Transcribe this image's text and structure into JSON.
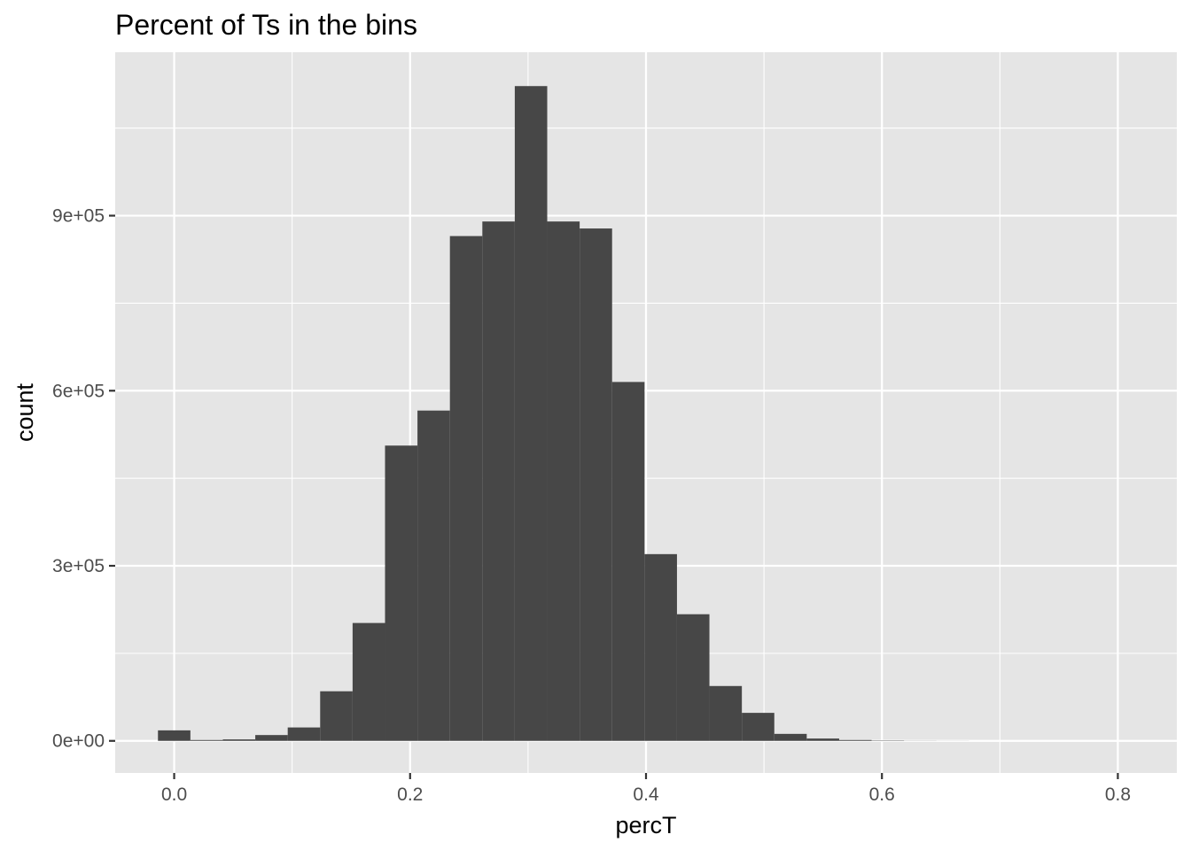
{
  "chart_data": {
    "type": "bar",
    "subtype": "histogram",
    "title": "Percent of Ts in the bins",
    "xlabel": "percT",
    "ylabel": "count",
    "xlim": [
      -0.05,
      0.85
    ],
    "ylim": [
      -55000,
      1180000
    ],
    "x_ticks": [
      0.0,
      0.2,
      0.4,
      0.6,
      0.8
    ],
    "x_tick_labels": [
      "0.0",
      "0.2",
      "0.4",
      "0.6",
      "0.8"
    ],
    "y_ticks": [
      0,
      300000,
      600000,
      900000
    ],
    "y_tick_labels": [
      "0e+00",
      "3e+05",
      "6e+05",
      "9e+05"
    ],
    "grid": true,
    "bin_width": 0.0275,
    "bins": [
      {
        "x": 0.0,
        "count": 18000
      },
      {
        "x": 0.0275,
        "count": 1500
      },
      {
        "x": 0.055,
        "count": 2500
      },
      {
        "x": 0.0825,
        "count": 10000
      },
      {
        "x": 0.11,
        "count": 23000
      },
      {
        "x": 0.1375,
        "count": 85000
      },
      {
        "x": 0.165,
        "count": 202000
      },
      {
        "x": 0.1925,
        "count": 506000
      },
      {
        "x": 0.22,
        "count": 566000
      },
      {
        "x": 0.2475,
        "count": 865000
      },
      {
        "x": 0.275,
        "count": 890000
      },
      {
        "x": 0.3025,
        "count": 1122000
      },
      {
        "x": 0.33,
        "count": 890000
      },
      {
        "x": 0.3575,
        "count": 878000
      },
      {
        "x": 0.385,
        "count": 615000
      },
      {
        "x": 0.4125,
        "count": 320000
      },
      {
        "x": 0.44,
        "count": 217000
      },
      {
        "x": 0.4675,
        "count": 94000
      },
      {
        "x": 0.495,
        "count": 48000
      },
      {
        "x": 0.5225,
        "count": 12000
      },
      {
        "x": 0.55,
        "count": 4000
      },
      {
        "x": 0.5775,
        "count": 1500
      },
      {
        "x": 0.605,
        "count": 600
      },
      {
        "x": 0.6325,
        "count": 200
      },
      {
        "x": 0.66,
        "count": 100
      }
    ],
    "colors": {
      "panel_background": "#e5e5e5",
      "grid_major": "#ffffff",
      "bar_fill": "#474747"
    }
  }
}
